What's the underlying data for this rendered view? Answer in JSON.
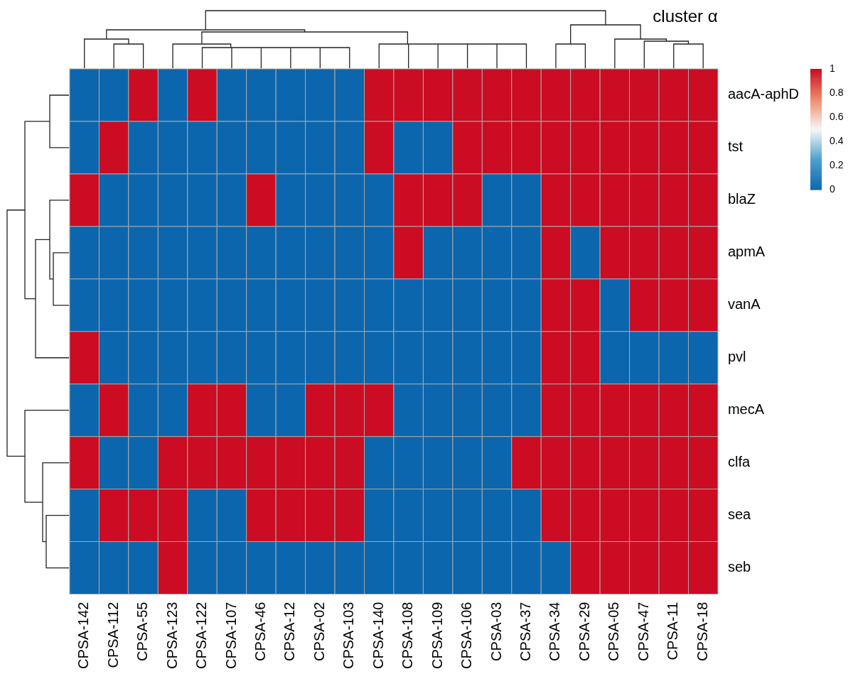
{
  "chart_data": {
    "type": "heatmap",
    "categories": [
      "CPSA-142",
      "CPSA-112",
      "CPSA-55",
      "CPSA-123",
      "CPSA-122",
      "CPSA-107",
      "CPSA-46",
      "CPSA-12",
      "CPSA-02",
      "CPSA-103",
      "CPSA-140",
      "CPSA-108",
      "CPSA-109",
      "CPSA-106",
      "CPSA-03",
      "CPSA-37",
      "CPSA-34",
      "CPSA-29",
      "CPSA-05",
      "CPSA-47",
      "CPSA-11",
      "CPSA-18"
    ],
    "y_categories": [
      "aacA-aphD",
      "tst",
      "blaZ",
      "apmA",
      "vanA",
      "pvl",
      "mecA",
      "clfa",
      "sea",
      "seb"
    ],
    "cells": [
      [
        0,
        0,
        1,
        0,
        1,
        0,
        0,
        0,
        0,
        0,
        1,
        1,
        1,
        1,
        1,
        1,
        1,
        1,
        1,
        1,
        1,
        1
      ],
      [
        0,
        1,
        0,
        0,
        0,
        0,
        0,
        0,
        0,
        0,
        1,
        0,
        0,
        1,
        1,
        1,
        1,
        1,
        1,
        1,
        1,
        1
      ],
      [
        1,
        0,
        0,
        0,
        0,
        0,
        1,
        0,
        0,
        0,
        0,
        1,
        1,
        1,
        0,
        0,
        1,
        1,
        1,
        1,
        1,
        1
      ],
      [
        0,
        0,
        0,
        0,
        0,
        0,
        0,
        0,
        0,
        0,
        0,
        1,
        0,
        0,
        0,
        0,
        1,
        0,
        1,
        1,
        1,
        1
      ],
      [
        0,
        0,
        0,
        0,
        0,
        0,
        0,
        0,
        0,
        0,
        0,
        0,
        0,
        0,
        0,
        0,
        1,
        1,
        0,
        1,
        1,
        1
      ],
      [
        1,
        0,
        0,
        0,
        0,
        0,
        0,
        0,
        0,
        0,
        0,
        0,
        0,
        0,
        0,
        0,
        1,
        1,
        0,
        0,
        0,
        0
      ],
      [
        0,
        1,
        0,
        0,
        1,
        1,
        0,
        0,
        1,
        1,
        1,
        0,
        0,
        0,
        0,
        0,
        1,
        1,
        1,
        1,
        1,
        1
      ],
      [
        1,
        0,
        0,
        1,
        1,
        1,
        1,
        1,
        1,
        1,
        0,
        0,
        0,
        0,
        0,
        1,
        1,
        1,
        1,
        1,
        1,
        1
      ],
      [
        0,
        1,
        1,
        1,
        0,
        0,
        1,
        1,
        1,
        1,
        0,
        0,
        0,
        0,
        0,
        0,
        1,
        1,
        1,
        1,
        1,
        1
      ],
      [
        0,
        0,
        0,
        1,
        0,
        0,
        0,
        0,
        0,
        0,
        0,
        0,
        0,
        0,
        0,
        0,
        0,
        1,
        1,
        1,
        1,
        1
      ]
    ],
    "clim": [
      0,
      1
    ],
    "cticks": [
      0,
      0.2,
      0.4,
      0.6,
      0.8,
      1
    ],
    "annotations": [
      "cluster α"
    ]
  }
}
